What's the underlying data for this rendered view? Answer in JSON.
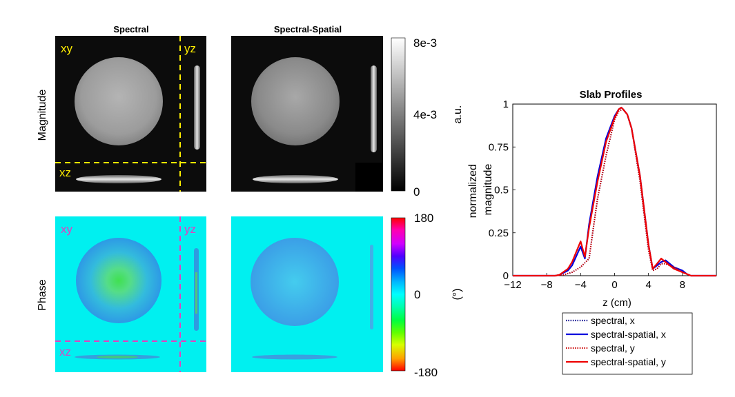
{
  "figure": {
    "column_titles": [
      "Spectral",
      "Spectral-Spatial"
    ],
    "row_labels": [
      "Magnitude",
      "Phase"
    ],
    "view_labels": {
      "xy": "xy",
      "yz": "yz",
      "xz": "xz"
    },
    "magnitude_colorbar": {
      "ticks": [
        "8e-3",
        "4e-3",
        "0"
      ],
      "unit": "a.u."
    },
    "phase_colorbar": {
      "ticks": [
        "180",
        "0",
        "-180"
      ],
      "unit": "(°)"
    },
    "colors": {
      "magnitude_background": "#0c0c0c",
      "phase_background": "#00f0f0",
      "magnitude_guides": "#ffee00",
      "phase_guides": "#e040c0",
      "phase_cyan": "#22ccee",
      "phase_center": "#40e050"
    }
  },
  "chart_data": {
    "type": "line",
    "title": "Slab Profiles",
    "xlabel": "z (cm)",
    "ylabel": "normalized\nmagnitude",
    "xlim": [
      -12,
      12
    ],
    "ylim": [
      0,
      1
    ],
    "xticks": [
      -12,
      -8,
      -4,
      0,
      4,
      8
    ],
    "xtick_labels": [
      "−12",
      "−8",
      "−4",
      "0",
      "4",
      "8"
    ],
    "yticks": [
      0,
      0.25,
      0.5,
      0.75,
      1
    ],
    "ytick_labels": [
      "0",
      "0.25",
      "0.5",
      "0.75",
      "1"
    ],
    "legend_position": "below",
    "series": [
      {
        "name": "spectral, x",
        "color": "#00008b",
        "style": "dotted",
        "x": [
          -12,
          -7,
          -6,
          -5,
          -4,
          -3,
          -2.5,
          -2,
          -1,
          0,
          0.5,
          1,
          1.5,
          2,
          3,
          4,
          4.5,
          5,
          5.5,
          6,
          7,
          8,
          8.5,
          9,
          12
        ],
        "y": [
          0,
          0,
          0.005,
          0.02,
          0.05,
          0.1,
          0.28,
          0.45,
          0.7,
          0.91,
          0.96,
          0.97,
          0.94,
          0.86,
          0.55,
          0.15,
          0.03,
          0.04,
          0.07,
          0.07,
          0.05,
          0.02,
          0.01,
          0,
          0
        ]
      },
      {
        "name": "spectral-spatial, x",
        "color": "#0000dd",
        "style": "solid",
        "x": [
          -12,
          -7,
          -6.5,
          -5.5,
          -5,
          -4,
          -3.5,
          -3,
          -2,
          -1,
          0,
          0.5,
          0.8,
          1,
          1.5,
          2,
          3,
          4,
          4.5,
          5,
          5.5,
          6,
          7,
          8,
          8.5,
          9,
          12
        ],
        "y": [
          0,
          0,
          0.005,
          0.03,
          0.06,
          0.17,
          0.1,
          0.3,
          0.58,
          0.8,
          0.93,
          0.97,
          0.98,
          0.97,
          0.94,
          0.86,
          0.58,
          0.18,
          0.04,
          0.06,
          0.08,
          0.09,
          0.05,
          0.03,
          0.01,
          0,
          0
        ]
      },
      {
        "name": "spectral, y",
        "color": "#cc0000",
        "style": "dotted",
        "x": [
          -12,
          -7,
          -6,
          -5,
          -4,
          -3,
          -2.5,
          -2,
          -1,
          0,
          0.5,
          1,
          1.5,
          2,
          3,
          4,
          4.5,
          5,
          5.5,
          6,
          7,
          8,
          8.5,
          9,
          12
        ],
        "y": [
          0,
          0,
          0.005,
          0.02,
          0.05,
          0.1,
          0.28,
          0.45,
          0.7,
          0.91,
          0.96,
          0.97,
          0.94,
          0.86,
          0.55,
          0.15,
          0.03,
          0.04,
          0.07,
          0.07,
          0.05,
          0.02,
          0.01,
          0,
          0
        ]
      },
      {
        "name": "spectral-spatial, y",
        "color": "#ee0000",
        "style": "solid",
        "x": [
          -12,
          -7,
          -6.5,
          -5.5,
          -5,
          -4,
          -3.5,
          -3,
          -2,
          -1,
          0,
          0.5,
          0.8,
          1,
          1.5,
          2,
          3,
          4,
          4.5,
          5,
          5.5,
          6,
          7,
          8,
          8.5,
          9,
          12
        ],
        "y": [
          0,
          0,
          0.005,
          0.04,
          0.08,
          0.2,
          0.11,
          0.28,
          0.55,
          0.78,
          0.92,
          0.97,
          0.98,
          0.97,
          0.94,
          0.86,
          0.58,
          0.18,
          0.04,
          0.07,
          0.1,
          0.08,
          0.04,
          0.02,
          0.01,
          0,
          0
        ]
      }
    ]
  }
}
